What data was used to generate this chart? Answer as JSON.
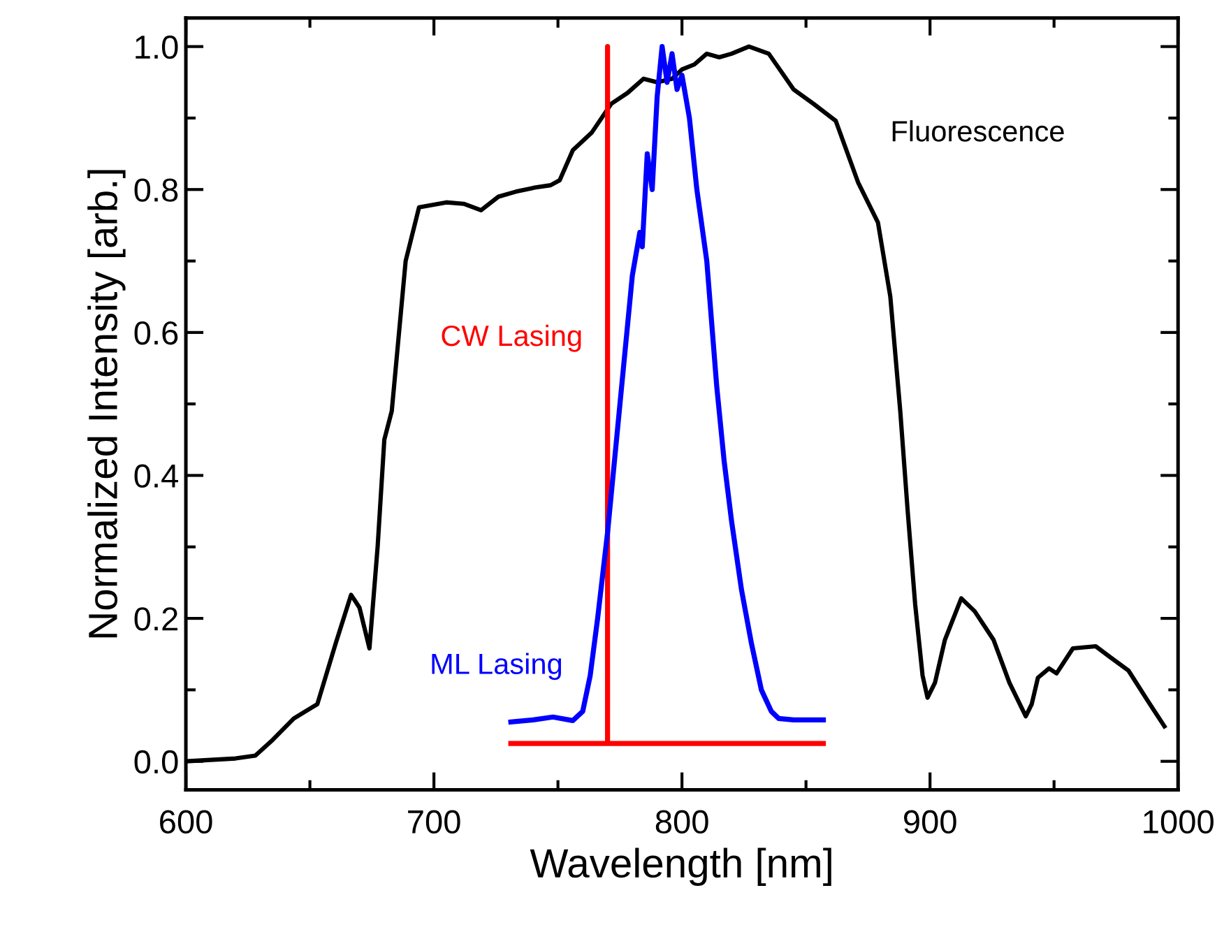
{
  "chart_data": {
    "type": "line",
    "xlabel": "Wavelength [nm]",
    "ylabel": "Normalized Intensity [arb.]",
    "xlim": [
      600,
      1000
    ],
    "ylim": [
      -0.04,
      1.04
    ],
    "xticks": [
      600,
      700,
      800,
      900,
      1000
    ],
    "yticks": [
      {
        "value": 0,
        "label": "0.0"
      },
      0.2,
      0.4,
      0.6,
      0.8,
      {
        "value": 1,
        "label": "1.0"
      }
    ],
    "grid": false,
    "legend": false,
    "marker": "none",
    "line_style": "solid",
    "series": [
      {
        "name": "Fluorescence",
        "color": "#000000",
        "x": [
          600,
          620,
          628,
          635,
          643.5,
          653,
          660.4,
          666.6,
          670,
          674,
          677.3,
          680,
          683,
          688.6,
          694,
          705,
          712,
          719,
          726,
          733,
          741,
          747,
          750.7,
          756,
          763.7,
          771.5,
          778,
          784.5,
          790,
          796,
          800,
          805,
          810,
          815,
          820,
          827,
          835,
          845,
          853,
          862,
          871,
          879,
          884,
          888,
          891,
          894,
          897,
          899,
          902,
          906,
          912.6,
          918,
          925.6,
          932,
          938.6,
          941,
          943.5,
          948,
          951,
          957.6,
          966.8,
          972.5,
          980,
          987.7,
          994.5
        ],
        "values": [
          0.0,
          0.004,
          0.008,
          0.03,
          0.06,
          0.08,
          0.165,
          0.233,
          0.215,
          0.158,
          0.3,
          0.45,
          0.49,
          0.7,
          0.775,
          0.782,
          0.78,
          0.771,
          0.79,
          0.797,
          0.803,
          0.806,
          0.813,
          0.855,
          0.88,
          0.92,
          0.935,
          0.955,
          0.95,
          0.955,
          0.968,
          0.975,
          0.99,
          0.985,
          0.99,
          1.0,
          0.99,
          0.94,
          0.92,
          0.896,
          0.81,
          0.754,
          0.65,
          0.49,
          0.35,
          0.22,
          0.12,
          0.089,
          0.11,
          0.17,
          0.228,
          0.21,
          0.17,
          0.11,
          0.063,
          0.08,
          0.117,
          0.13,
          0.123,
          0.158,
          0.161,
          0.146,
          0.127,
          0.085,
          0.049
        ]
      },
      {
        "name": "CW Lasing",
        "color": "#ff0000",
        "x": [
          731,
          770,
          770,
          770,
          857
        ],
        "values": [
          0.025,
          0.025,
          1.0,
          0.025,
          0.025
        ]
      },
      {
        "name": "ML Lasing",
        "color": "#0000ff",
        "x": [
          731,
          740,
          748,
          756,
          760,
          763,
          766,
          770,
          775,
          780,
          783,
          784,
          786,
          788,
          790,
          792,
          794,
          796,
          798,
          800,
          803,
          806,
          810,
          814,
          817,
          820,
          824,
          828,
          832,
          836,
          839,
          845,
          857
        ],
        "values": [
          0.055,
          0.058,
          0.062,
          0.057,
          0.07,
          0.12,
          0.2,
          0.32,
          0.5,
          0.68,
          0.74,
          0.72,
          0.85,
          0.8,
          0.93,
          1.0,
          0.95,
          0.99,
          0.94,
          0.96,
          0.9,
          0.8,
          0.7,
          0.525,
          0.42,
          0.336,
          0.24,
          0.165,
          0.1,
          0.07,
          0.06,
          0.058,
          0.058
        ]
      }
    ]
  }
}
